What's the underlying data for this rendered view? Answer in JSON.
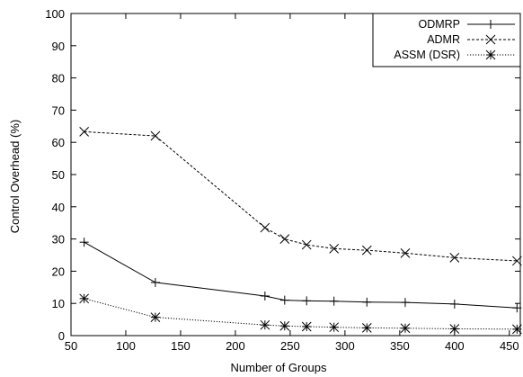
{
  "chart_data": {
    "type": "line",
    "xlabel": "Number of Groups",
    "ylabel": "Control Overhead (%)",
    "xlim": [
      50,
      460
    ],
    "ylim": [
      0,
      100
    ],
    "xticks": [
      50,
      100,
      150,
      200,
      250,
      300,
      350,
      400,
      450
    ],
    "yticks": [
      0,
      10,
      20,
      30,
      40,
      50,
      60,
      70,
      80,
      90,
      100
    ],
    "grid": false,
    "legend_position": "top-right",
    "series": [
      {
        "name": "ODMRP",
        "marker": "plus",
        "line_style": "solid",
        "x": [
          62,
          127,
          227,
          245,
          265,
          290,
          320,
          355,
          400,
          457
        ],
        "y": [
          29.0,
          16.5,
          12.3,
          11.0,
          10.8,
          10.7,
          10.4,
          10.3,
          9.8,
          8.6
        ]
      },
      {
        "name": "ADMR",
        "marker": "cross",
        "line_style": "dashed",
        "x": [
          62,
          127,
          227,
          245,
          265,
          290,
          320,
          355,
          400,
          457
        ],
        "y": [
          63.3,
          62.0,
          33.5,
          30.0,
          28.2,
          27.0,
          26.5,
          25.6,
          24.2,
          23.2
        ]
      },
      {
        "name": "ASSM (DSR)",
        "marker": "star",
        "line_style": "dotted",
        "x": [
          62,
          127,
          227,
          245,
          265,
          290,
          320,
          355,
          400,
          457
        ],
        "y": [
          11.5,
          5.7,
          3.3,
          3.0,
          2.8,
          2.6,
          2.4,
          2.3,
          2.1,
          2.0
        ]
      }
    ]
  }
}
